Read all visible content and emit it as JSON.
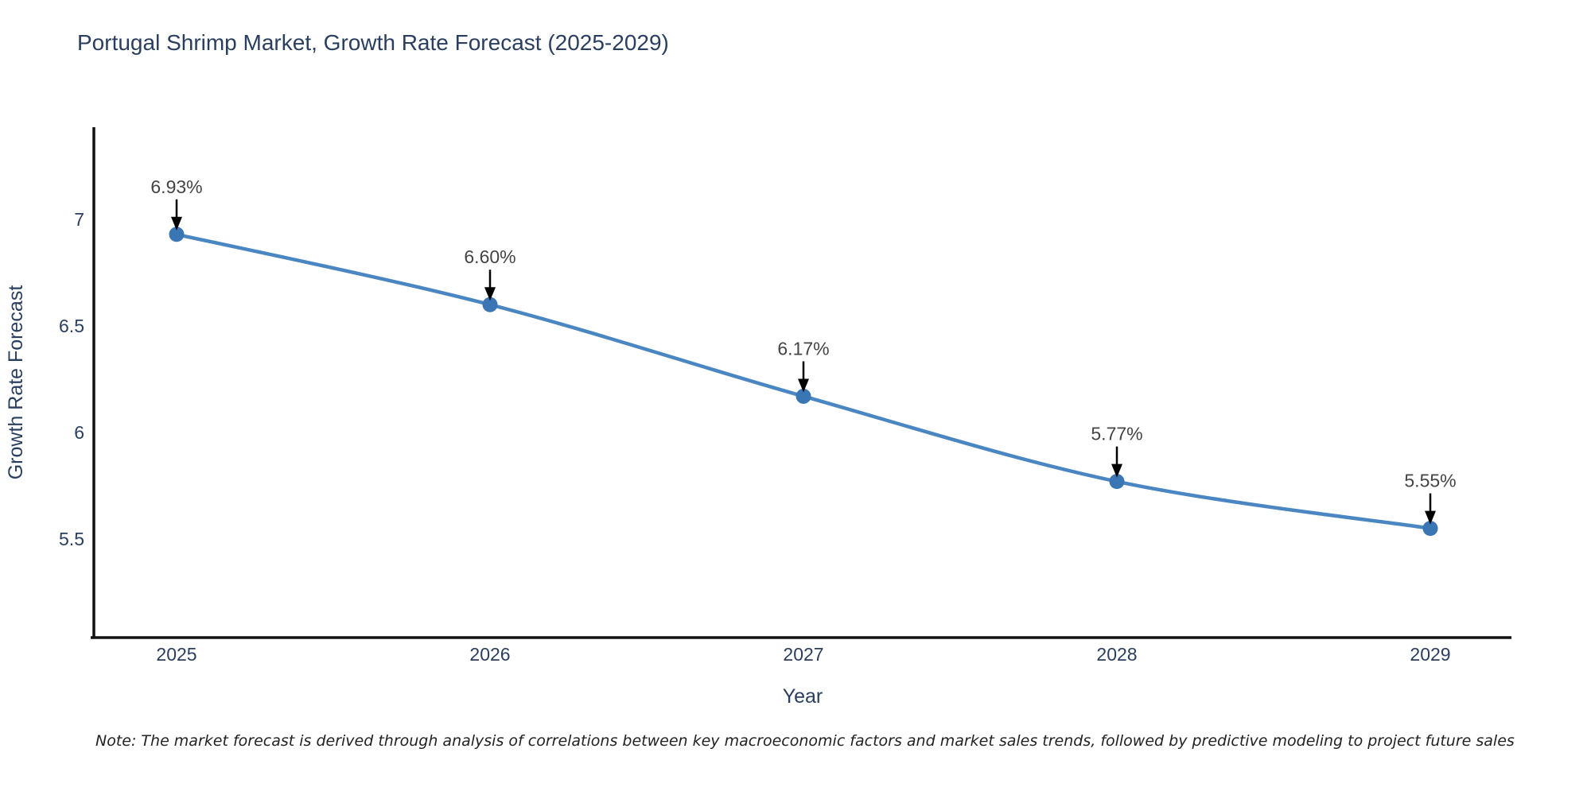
{
  "header": {
    "title": "Portugal Shrimp Market, Growth Rate Forecast (2025-2029)"
  },
  "footer": {
    "note": "Note: The market forecast is derived through analysis of correlations between key macroeconomic factors and market sales trends, followed by predictive modeling to project future sales"
  },
  "chart_data": {
    "type": "line",
    "title": "Portugal Shrimp Market, Growth Rate Forecast (2025-2029)",
    "xlabel": "Year",
    "ylabel": "Growth Rate Forecast",
    "x": [
      2025,
      2026,
      2027,
      2028,
      2029
    ],
    "xtick_labels": [
      "2025",
      "2026",
      "2027",
      "2028",
      "2029"
    ],
    "series": [
      {
        "name": "Growth Rate Forecast",
        "values": [
          6.93,
          6.6,
          6.17,
          5.77,
          5.55
        ]
      }
    ],
    "point_labels": [
      "6.93%",
      "6.60%",
      "6.17%",
      "5.77%",
      "5.55%"
    ],
    "yticks": [
      5.5,
      6,
      6.5,
      7
    ],
    "ytick_labels": [
      "5.5",
      "6",
      "6.5",
      "7"
    ],
    "ylim": [
      5.05,
      7.43
    ],
    "grid": false,
    "legend_position": "none",
    "line_shape": "spline",
    "colors": {
      "line": "#4a86c2",
      "marker": "#3a76b4",
      "annotation_arrow": "#000000",
      "annotation_text": "#444444",
      "axis_line": "#111111",
      "chart_text": "#2a3f5f",
      "background": "#ffffff"
    }
  }
}
